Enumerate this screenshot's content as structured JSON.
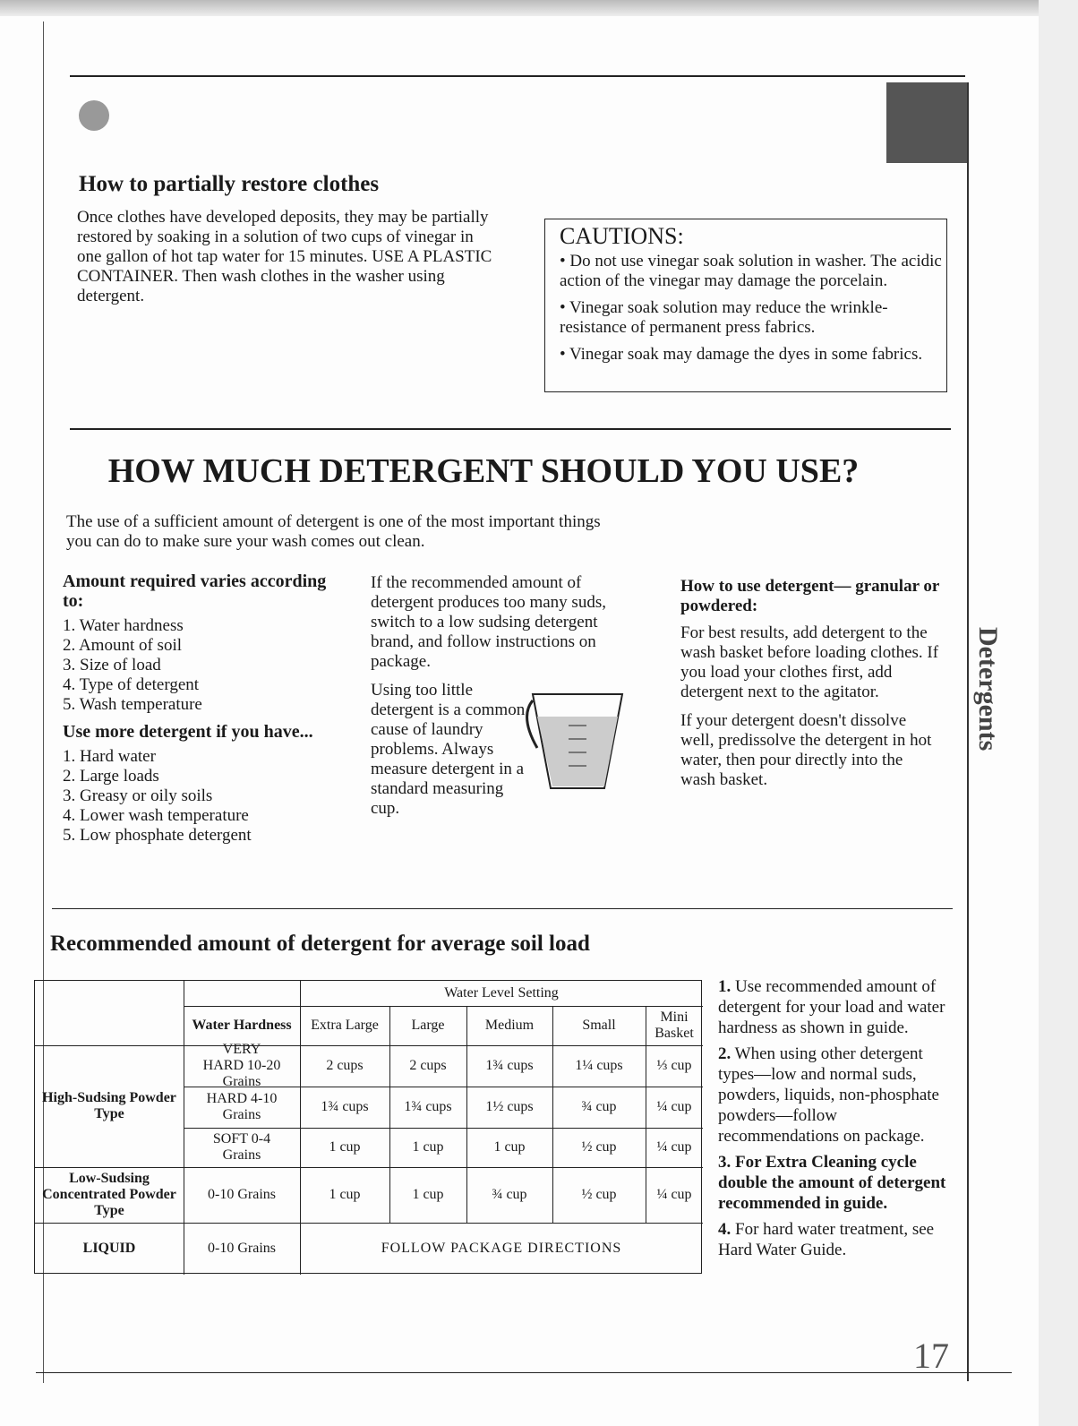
{
  "side_tab": "Detergents",
  "restore": {
    "heading": "How to partially restore clothes",
    "body": "Once clothes have developed deposits, they may be partially restored by soaking in a solution of two cups of vinegar in one gallon of hot tap water for 15 minutes. USE A PLASTIC CONTAINER. Then wash clothes in the washer using detergent."
  },
  "cautions": {
    "title": "CAUTIONS:",
    "items": [
      "• Do not use vinegar soak solution in washer. The acidic action of the vinegar may damage the porcelain.",
      "• Vinegar soak solution may reduce the wrinkle-resistance of permanent press fabrics.",
      "• Vinegar soak may damage the dyes in some fabrics."
    ]
  },
  "main_title": "HOW MUCH DETERGENT SHOULD YOU USE?",
  "intro": "The use of a sufficient amount of detergent is one of the most important things you can do to make sure your wash comes out clean.",
  "col1": {
    "heading1": "Amount required varies according to:",
    "list1": [
      "1. Water hardness",
      "2. Amount of soil",
      "3. Size of load",
      "4. Type of detergent",
      "5. Wash temperature"
    ],
    "heading2": "Use more detergent if you have...",
    "list2": [
      "1. Hard water",
      "2. Large loads",
      "3. Greasy or oily soils",
      "4. Lower wash temperature",
      "5. Low phosphate detergent"
    ]
  },
  "col2": {
    "p1": "If the recommended amount of detergent produces too many suds, switch to a low sudsing detergent brand, and follow instructions on package.",
    "p2": "Using too little detergent is a common cause of laundry problems. Always measure detergent in a standard measuring cup."
  },
  "col3": {
    "heading": "How to use detergent— granular or powdered:",
    "p1": "For best results, add detergent to the wash basket before loading clothes. If you load your clothes first, add detergent next to the agitator.",
    "p2": "If your detergent doesn't dissolve well, predissolve the detergent in hot water, then pour directly into the wash basket."
  },
  "table": {
    "heading": "Recommended amount of detergent for average soil load",
    "group_header": "Water Level Setting",
    "hardness_header": "Water Hardness",
    "columns": [
      "Extra Large",
      "Large",
      "Medium",
      "Small",
      "Mini Basket"
    ],
    "rows": [
      {
        "type": "High-Sudsing Powder Type",
        "hardness": "VERY HARD 10-20 Grains",
        "values": [
          "2 cups",
          "2 cups",
          "1¾ cups",
          "1¼ cups",
          "⅓ cup"
        ]
      },
      {
        "type": "",
        "hardness": "HARD 4-10 Grains",
        "values": [
          "1¾ cups",
          "1¾ cups",
          "1½ cups",
          "¾ cup",
          "¼ cup"
        ]
      },
      {
        "type": "",
        "hardness": "SOFT 0-4 Grains",
        "values": [
          "1 cup",
          "1 cup",
          "1 cup",
          "½ cup",
          "¼ cup"
        ]
      },
      {
        "type": "Low-Sudsing Concentrated Powder Type",
        "hardness": "0-10 Grains",
        "values": [
          "1 cup",
          "1 cup",
          "¾ cup",
          "½ cup",
          "¼ cup"
        ]
      },
      {
        "type": "LIQUID",
        "hardness": "0-10 Grains",
        "note": "FOLLOW PACKAGE DIRECTIONS"
      }
    ]
  },
  "notes": [
    {
      "num": "1.",
      "text": "Use recommended amount of detergent for your load and water hardness as shown in guide."
    },
    {
      "num": "2.",
      "text": "When using other detergent types—low and normal suds, powders, liquids, non-phosphate powders—follow recommendations on package."
    },
    {
      "num": "3.",
      "text": "For Extra Cleaning cycle double the amount of detergent recommended in guide."
    },
    {
      "num": "4.",
      "text": "For hard water treatment, see Hard Water Guide."
    }
  ],
  "page_number": "17"
}
